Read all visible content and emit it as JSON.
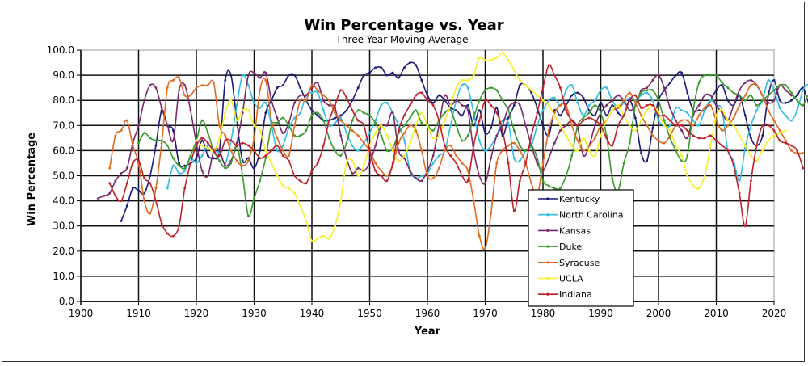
{
  "chart_data": {
    "type": "line",
    "title": "Win Percentage vs. Year",
    "subtitle": "-Three Year Moving Average -",
    "xlabel": "Year",
    "ylabel": "Win Percentage",
    "xlim": [
      1900,
      2020
    ],
    "ylim": [
      0,
      100
    ],
    "xticks": [
      "1900",
      "1910",
      "1920",
      "1930",
      "1940",
      "1950",
      "1960",
      "1970",
      "1980",
      "1990",
      "2000",
      "2010",
      "2020"
    ],
    "yticks": [
      "0.0",
      "10.0",
      "20.0",
      "30.0",
      "40.0",
      "50.0",
      "60.0",
      "70.0",
      "80.0",
      "90.0",
      "100.0"
    ],
    "grid": true,
    "legend_position": "bottom-center-right",
    "series": [
      {
        "name": "Kentucky",
        "color": "#1a1a7a",
        "start": 1907,
        "values": [
          32,
          38,
          45,
          44,
          43,
          50,
          62,
          76,
          70,
          68,
          55,
          54,
          55,
          57,
          64,
          58,
          57,
          60,
          88,
          90,
          72,
          56,
          57,
          53,
          60,
          75,
          80,
          85,
          86,
          90,
          90,
          85,
          80,
          76,
          74,
          72,
          72,
          73,
          74,
          76,
          80,
          85,
          90,
          91,
          93,
          93,
          90,
          91,
          89,
          93,
          95,
          94,
          88,
          82,
          79,
          82,
          80,
          77,
          76,
          74,
          78,
          70,
          76,
          67,
          69,
          77,
          66,
          73,
          78,
          86,
          86,
          83,
          77,
          70,
          66,
          76,
          74,
          78,
          82,
          83,
          81,
          76,
          74,
          79,
          74,
          78,
          75,
          74,
          80,
          73,
          59,
          56,
          69,
          80,
          84,
          87,
          90,
          91,
          83,
          76,
          76,
          76,
          80,
          84,
          86,
          80,
          78,
          82,
          74,
          65,
          62,
          66,
          82,
          88,
          80,
          79,
          80,
          82,
          85,
          79,
          78
        ]
      },
      {
        "name": "North Carolina",
        "color": "#33bbe0",
        "start": 1915,
        "values": [
          45,
          54,
          51,
          52,
          57,
          55,
          58,
          62,
          60,
          59,
          55,
          64,
          78,
          90,
          86,
          79,
          77,
          79,
          70,
          60,
          62,
          69,
          73,
          75,
          82,
          83,
          83,
          76,
          70,
          71,
          73,
          67,
          62,
          60,
          63,
          67,
          72,
          78,
          79,
          75,
          70,
          64,
          52,
          49,
          50,
          51,
          55,
          58,
          60,
          70,
          80,
          86,
          85,
          75,
          64,
          60,
          62,
          66,
          72,
          71,
          57,
          56,
          60,
          62,
          70,
          76,
          80,
          81,
          78,
          84,
          86,
          79,
          74,
          78,
          80,
          84,
          85,
          80,
          77,
          79,
          81,
          80,
          82,
          83,
          80,
          72,
          70,
          70,
          77,
          76,
          75,
          72,
          70,
          76,
          80,
          78,
          76,
          60,
          56,
          48,
          61,
          70,
          76,
          80,
          88,
          84,
          77,
          74,
          72,
          76,
          84,
          86,
          79,
          77,
          78,
          76,
          78,
          77,
          79,
          78,
          78
        ]
      },
      {
        "name": "Kansas",
        "color": "#7a2a6a",
        "start": 1903,
        "values": [
          41,
          42,
          43,
          48,
          51,
          53,
          63,
          70,
          80,
          86,
          85,
          77,
          70,
          64,
          84,
          86,
          76,
          63,
          52,
          50,
          60,
          60,
          54,
          56,
          63,
          75,
          90,
          91,
          89,
          91,
          80,
          73,
          67,
          71,
          79,
          82,
          82,
          85,
          87,
          80,
          78,
          77,
          66,
          57,
          51,
          53,
          52,
          55,
          62,
          70,
          70,
          75,
          60,
          57,
          52,
          49,
          48,
          52,
          58,
          70,
          82,
          78,
          80,
          78,
          76,
          60,
          50,
          47,
          57,
          66,
          70,
          77,
          79,
          78,
          70,
          62,
          55,
          52,
          57,
          63,
          68,
          70,
          72,
          69,
          58,
          62,
          70,
          75,
          78,
          80,
          82,
          80,
          76,
          78,
          84,
          85,
          88,
          90,
          85,
          77,
          72,
          68,
          65,
          74,
          78,
          82,
          82,
          78,
          75,
          72,
          78,
          84,
          87,
          88,
          86,
          82,
          79,
          80,
          86,
          84,
          82
        ]
      },
      {
        "name": "Duke",
        "color": "#3a9a2e",
        "start": 1910,
        "values": [
          63,
          67,
          65,
          64,
          64,
          62,
          57,
          54,
          53,
          58,
          64,
          72,
          67,
          60,
          56,
          53,
          55,
          62,
          50,
          34,
          41,
          48,
          57,
          70,
          71,
          73,
          70,
          66,
          66,
          68,
          74,
          75,
          72,
          65,
          60,
          58,
          63,
          72,
          76,
          75,
          74,
          71,
          66,
          60,
          61,
          67,
          70,
          73,
          76,
          71,
          70,
          68,
          72,
          75,
          76,
          70,
          64,
          66,
          73,
          80,
          84,
          85,
          84,
          80,
          76,
          68,
          62,
          60,
          62,
          57,
          48,
          46,
          45,
          45,
          50,
          58,
          70,
          73,
          75,
          78,
          75,
          66,
          49,
          44,
          55,
          63,
          78,
          83,
          84,
          84,
          80,
          72,
          65,
          60,
          56,
          58,
          76,
          87,
          90,
          90,
          90,
          87,
          85,
          83,
          82,
          80,
          82,
          78,
          80,
          82,
          84,
          86,
          86,
          83,
          80,
          78,
          82,
          76,
          74,
          77,
          78
        ]
      },
      {
        "name": "Syracuse",
        "color": "#e06a20",
        "start": 1905,
        "values": [
          53,
          66,
          68,
          72,
          62,
          55,
          40,
          35,
          45,
          63,
          85,
          88,
          89,
          82,
          82,
          85,
          86,
          86,
          87,
          70,
          66,
          60,
          56,
          54,
          56,
          65,
          84,
          88,
          72,
          65,
          60,
          58,
          70,
          80,
          80,
          86,
          84,
          82,
          80,
          75,
          72,
          70,
          68,
          66,
          63,
          60,
          55,
          52,
          50,
          54,
          63,
          67,
          70,
          68,
          60,
          50,
          49,
          53,
          60,
          62,
          58,
          55,
          52,
          40,
          26,
          21,
          35,
          55,
          60,
          62,
          63,
          60,
          55,
          47,
          42,
          55,
          68,
          75,
          78,
          78,
          70,
          64,
          60,
          62,
          65,
          70,
          72,
          76,
          77,
          80,
          83,
          79,
          74,
          70,
          66,
          64,
          63,
          66,
          70,
          72,
          72,
          70,
          74,
          77,
          78,
          72,
          68,
          70,
          73,
          78,
          82,
          86,
          86,
          82,
          76,
          72,
          68,
          64,
          60,
          59,
          59
        ]
      },
      {
        "name": "UCLA",
        "color": "#f5ef2a",
        "start": 1920,
        "values": [
          64,
          62,
          61,
          60,
          65,
          75,
          80,
          72,
          76,
          76,
          70,
          68,
          60,
          55,
          50,
          46,
          45,
          43,
          38,
          32,
          24,
          25,
          26,
          25,
          30,
          40,
          55,
          56,
          50,
          54,
          62,
          67,
          70,
          66,
          60,
          56,
          58,
          63,
          70,
          75,
          70,
          65,
          66,
          72,
          78,
          85,
          88,
          88,
          90,
          97,
          96,
          96,
          97,
          99,
          96,
          92,
          88,
          86,
          84,
          82,
          80,
          78,
          74,
          70,
          66,
          62,
          60,
          65,
          60,
          58,
          66,
          72,
          76,
          78,
          74,
          70,
          68,
          72,
          76,
          78,
          75,
          70,
          68,
          62,
          58,
          50,
          46,
          45,
          50,
          62,
          74,
          76,
          72,
          70,
          66,
          62,
          58,
          56,
          60,
          64,
          66,
          67,
          68
        ]
      },
      {
        "name": "Indiana",
        "color": "#c0202a",
        "start": 1905,
        "values": [
          47,
          42,
          40,
          47,
          55,
          56,
          49,
          47,
          40,
          31,
          27,
          26,
          30,
          45,
          55,
          62,
          65,
          63,
          60,
          58,
          64,
          64,
          62,
          63,
          62,
          60,
          57,
          58,
          60,
          62,
          58,
          56,
          50,
          48,
          47,
          52,
          55,
          62,
          72,
          78,
          84,
          81,
          76,
          72,
          70,
          60,
          52,
          50,
          48,
          55,
          68,
          74,
          78,
          82,
          83,
          80,
          78,
          72,
          62,
          58,
          55,
          50,
          48,
          62,
          72,
          80,
          78,
          75,
          68,
          55,
          36,
          48,
          55,
          66,
          75,
          85,
          94,
          90,
          85,
          76,
          72,
          70,
          72,
          73,
          72,
          70,
          65,
          62,
          70,
          74,
          80,
          82,
          77,
          78,
          78,
          74,
          74,
          72,
          70,
          70,
          68,
          66,
          65,
          65,
          66,
          64,
          62,
          60,
          54,
          43,
          30,
          48,
          62,
          70,
          70,
          68,
          64,
          63,
          62,
          60,
          53
        ]
      }
    ]
  }
}
